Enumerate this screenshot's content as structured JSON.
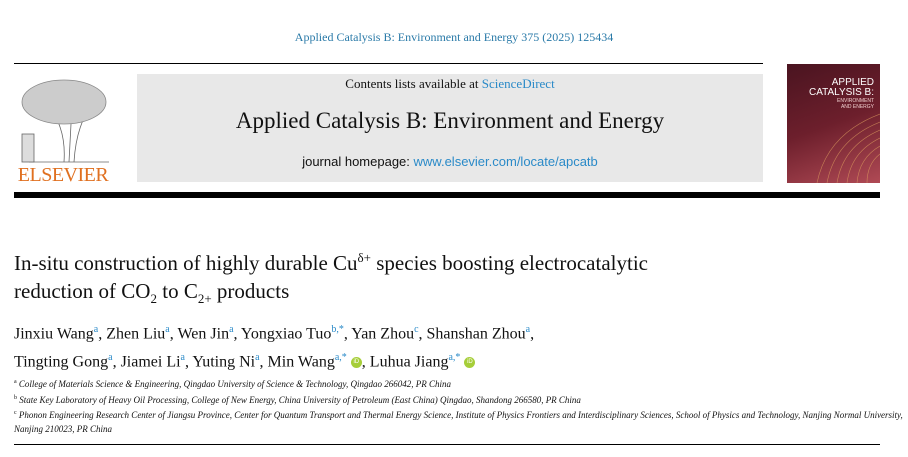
{
  "citation": "Applied Catalysis B: Environment and Energy 375 (2025) 125434",
  "publisher": "ELSEVIER",
  "contents_prefix": "Contents lists available at ",
  "contents_link": "ScienceDirect",
  "journal_title": "Applied Catalysis B: Environment and Energy",
  "homepage_prefix": "journal homepage: ",
  "homepage_link": "www.elsevier.com/locate/apcatb",
  "cover": {
    "line1": "APPLIED",
    "line2": "CATALYSIS B:",
    "line3": "ENVIRONMENT",
    "line4": "AND ENERGY"
  },
  "title": {
    "p1": "In-situ construction of highly durable Cu",
    "sup1": "δ+",
    "p2": " species boosting electrocatalytic",
    "p3": "reduction of CO",
    "sub1": "2",
    "p4": " to C",
    "sub2": "2+",
    "p5": " products"
  },
  "authors": [
    {
      "name": "Jinxiu Wang",
      "aff": "a"
    },
    {
      "name": "Zhen Liu",
      "aff": "a"
    },
    {
      "name": "Wen Jin",
      "aff": "a"
    },
    {
      "name": "Yongxiao Tuo",
      "aff": "b,*"
    },
    {
      "name": "Yan Zhou",
      "aff": "c"
    },
    {
      "name": "Shanshan Zhou",
      "aff": "a"
    },
    {
      "name": "Tingting Gong",
      "aff": "a"
    },
    {
      "name": "Jiamei Li",
      "aff": "a"
    },
    {
      "name": "Yuting Ni",
      "aff": "a"
    },
    {
      "name": "Min Wang",
      "aff": "a,*",
      "orcid": true
    },
    {
      "name": "Luhua Jiang",
      "aff": "a,*",
      "orcid": true
    }
  ],
  "orcid_label": "iD",
  "affiliations": [
    {
      "key": "a",
      "text": "College of Materials Science & Engineering, Qingdao University of Science & Technology, Qingdao 266042, PR China"
    },
    {
      "key": "b",
      "text": "State Key Laboratory of Heavy Oil Processing, College of New Energy, China University of Petroleum (East China) Qingdao, Shandong 266580, PR China"
    },
    {
      "key": "c",
      "text": "Phonon Engineering Research Center of Jiangsu Province, Center for Quantum Transport and Thermal Energy Science, Institute of Physics Frontiers and Interdisciplinary Sciences, School of Physics and Technology, Nanjing Normal University, Nanjing 210023, PR China"
    }
  ],
  "colors": {
    "link": "#2a8ac8",
    "elsevier": "#e07020",
    "orcid": "#a6ce39"
  }
}
